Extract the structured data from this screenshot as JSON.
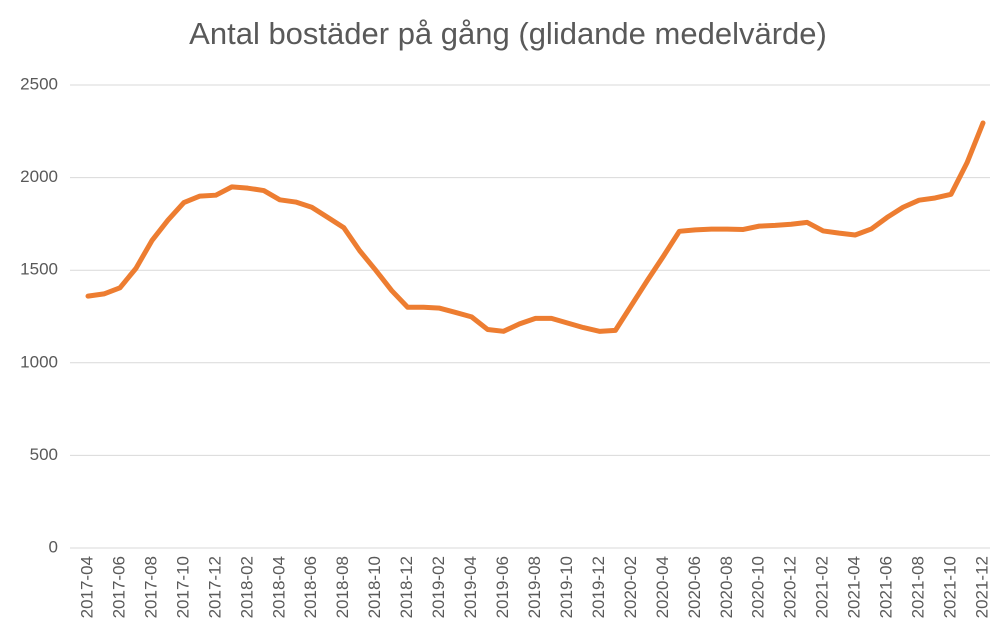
{
  "chart_data": {
    "type": "line",
    "title": "Antal bostäder på gång (glidande medelvärde)",
    "categories": [
      "2017-04",
      null,
      "2017-06",
      null,
      "2017-08",
      null,
      "2017-10",
      null,
      "2017-12",
      null,
      "2018-02",
      null,
      "2018-04",
      null,
      "2018-06",
      null,
      "2018-08",
      null,
      "2018-10",
      null,
      "2018-12",
      null,
      "2019-02",
      null,
      "2019-04",
      null,
      "2019-06",
      null,
      "2019-08",
      null,
      "2019-10",
      null,
      "2019-12",
      null,
      "2020-02",
      null,
      "2020-04",
      null,
      "2020-06",
      null,
      "2020-08",
      null,
      "2020-10",
      null,
      "2020-12",
      null,
      "2021-02",
      null,
      "2021-04",
      null,
      "2021-06",
      null,
      "2021-08",
      null,
      "2021-10",
      null,
      "2021-12"
    ],
    "series": [
      {
        "name": "Antal bostäder på gång",
        "color": "#ed7d31",
        "values": [
          1360,
          1372,
          1405,
          1510,
          1660,
          1770,
          1865,
          1900,
          1905,
          1950,
          1943,
          1930,
          1880,
          1868,
          1840,
          1785,
          1730,
          1605,
          1500,
          1390,
          1300,
          1300,
          1295,
          1272,
          1248,
          1180,
          1170,
          1210,
          1240,
          1240,
          1215,
          1190,
          1170,
          1175,
          1310,
          1445,
          1575,
          1710,
          1718,
          1722,
          1722,
          1720,
          1738,
          1742,
          1748,
          1758,
          1712,
          1700,
          1690,
          1722,
          1785,
          1840,
          1878,
          1890,
          1910,
          2080,
          2295
        ]
      }
    ],
    "ylim": [
      0,
      2500
    ],
    "yticks": [
      0,
      500,
      1000,
      1500,
      2000,
      2500
    ],
    "grid": true
  }
}
